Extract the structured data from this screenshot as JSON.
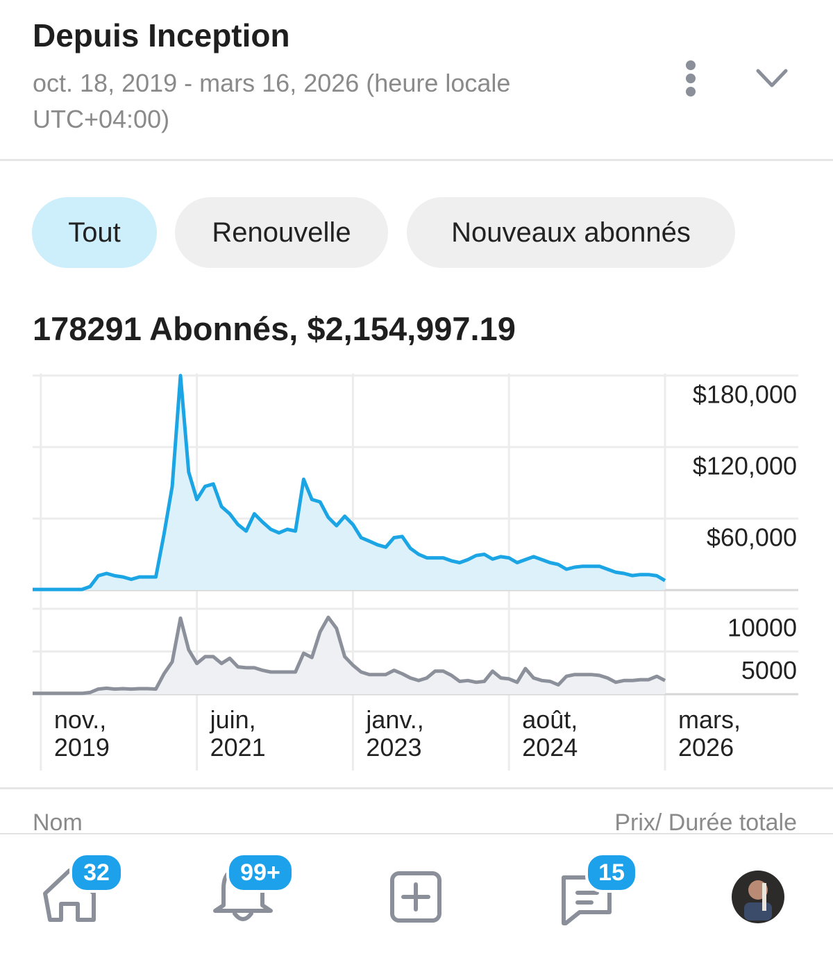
{
  "header": {
    "title": "Depuis Inception",
    "subtitle": "oct. 18, 2019 - mars 16, 2026 (heure locale UTC+04:00)"
  },
  "tabs": [
    "Tout",
    "Renouvelle",
    "Nouveaux abonnés"
  ],
  "summary": "178291 Abonnés, $2,154,997.19",
  "table_header": {
    "name": "Nom",
    "price": "Prix/ Durée totale"
  },
  "nav": {
    "badges": [
      "32",
      "99+",
      "15"
    ]
  },
  "chart_data": [
    {
      "type": "area",
      "x": [
        "2019-10",
        "2019-11",
        "2019-12",
        "2020-01",
        "2020-02",
        "2020-03",
        "2020-04",
        "2020-05",
        "2020-06",
        "2020-07",
        "2020-08",
        "2020-09",
        "2020-10",
        "2020-11",
        "2020-12",
        "2021-01",
        "2021-02",
        "2021-03",
        "2021-04",
        "2021-05",
        "2021-06",
        "2021-07",
        "2021-08",
        "2021-09",
        "2021-10",
        "2021-11",
        "2021-12",
        "2022-01",
        "2022-02",
        "2022-03",
        "2022-04",
        "2022-05",
        "2022-06",
        "2022-07",
        "2022-08",
        "2022-09",
        "2022-10",
        "2022-11",
        "2022-12",
        "2023-01",
        "2023-02",
        "2023-03",
        "2023-04",
        "2023-05",
        "2023-06",
        "2023-07",
        "2023-08",
        "2023-09",
        "2023-10",
        "2023-11",
        "2023-12",
        "2024-01",
        "2024-02",
        "2024-03",
        "2024-04",
        "2024-05",
        "2024-06",
        "2024-07",
        "2024-08",
        "2024-09",
        "2024-10",
        "2024-11",
        "2024-12",
        "2025-01",
        "2025-02",
        "2025-03",
        "2025-04",
        "2025-05",
        "2025-06",
        "2025-07",
        "2025-08",
        "2025-09",
        "2025-10",
        "2025-11",
        "2025-12",
        "2026-01",
        "2026-02",
        "2026-03"
      ],
      "values": [
        500,
        500,
        500,
        500,
        500,
        500,
        500,
        3000,
        12000,
        14000,
        12000,
        11000,
        9000,
        11000,
        11000,
        11000,
        47000,
        87000,
        180000,
        99000,
        76000,
        87000,
        89000,
        70000,
        64000,
        55000,
        49500,
        64000,
        57000,
        51000,
        48000,
        51000,
        49500,
        93000,
        76000,
        74000,
        61000,
        54000,
        62000,
        55000,
        44000,
        41000,
        38000,
        36000,
        44000,
        45000,
        35000,
        30000,
        27000,
        27000,
        27000,
        24500,
        23000,
        25600,
        29000,
        30000,
        26000,
        28000,
        27000,
        23000,
        25600,
        28000,
        25600,
        23000,
        21500,
        17500,
        19200,
        20000,
        20000,
        20000,
        17500,
        15000,
        14000,
        12200,
        13000,
        13000,
        12000,
        8000
      ],
      "color": "#1ba5e5",
      "fill_color": "#dcf1fa",
      "xlim": [
        "2019-10",
        "2026-03"
      ],
      "xticks": [
        {
          "value": "2019-11",
          "label": "nov.,\n2019"
        },
        {
          "value": "2021-06",
          "label": "juin,\n2021"
        },
        {
          "value": "2023-01",
          "label": "janv.,\n2023"
        },
        {
          "value": "2024-08",
          "label": "août,\n2024"
        },
        {
          "value": "2026-03",
          "label": "mars,\n2026"
        }
      ],
      "ylim": [
        0,
        180000
      ],
      "yticks": [
        {
          "value": 60000,
          "label": "$60,000"
        },
        {
          "value": 120000,
          "label": "$120,000"
        },
        {
          "value": 180000,
          "label": "$180,000"
        }
      ],
      "grid": true
    },
    {
      "type": "area",
      "x": [
        "2019-10",
        "2019-11",
        "2019-12",
        "2020-01",
        "2020-02",
        "2020-03",
        "2020-04",
        "2020-05",
        "2020-06",
        "2020-07",
        "2020-08",
        "2020-09",
        "2020-10",
        "2020-11",
        "2020-12",
        "2021-01",
        "2021-02",
        "2021-03",
        "2021-04",
        "2021-05",
        "2021-06",
        "2021-07",
        "2021-08",
        "2021-09",
        "2021-10",
        "2021-11",
        "2021-12",
        "2022-01",
        "2022-02",
        "2022-03",
        "2022-04",
        "2022-05",
        "2022-06",
        "2022-07",
        "2022-08",
        "2022-09",
        "2022-10",
        "2022-11",
        "2022-12",
        "2023-01",
        "2023-02",
        "2023-03",
        "2023-04",
        "2023-05",
        "2023-06",
        "2023-07",
        "2023-08",
        "2023-09",
        "2023-10",
        "2023-11",
        "2023-12",
        "2024-01",
        "2024-02",
        "2024-03",
        "2024-04",
        "2024-05",
        "2024-06",
        "2024-07",
        "2024-08",
        "2024-09",
        "2024-10",
        "2024-11",
        "2024-12",
        "2025-01",
        "2025-02",
        "2025-03",
        "2025-04",
        "2025-05",
        "2025-06",
        "2025-07",
        "2025-08",
        "2025-09",
        "2025-10",
        "2025-11",
        "2025-12",
        "2026-01",
        "2026-02",
        "2026-03"
      ],
      "values": [
        100,
        100,
        100,
        100,
        100,
        100,
        100,
        200,
        600,
        700,
        600,
        650,
        600,
        650,
        650,
        600,
        2400,
        3800,
        8900,
        5200,
        3600,
        4400,
        4400,
        3600,
        4200,
        3200,
        3100,
        3100,
        2800,
        2600,
        2600,
        2600,
        2600,
        4800,
        4300,
        7300,
        9000,
        7700,
        4400,
        3400,
        2600,
        2300,
        2300,
        2300,
        2800,
        2400,
        1900,
        1600,
        1900,
        2700,
        2700,
        2200,
        1500,
        1600,
        1400,
        1500,
        2700,
        1900,
        1800,
        1400,
        3000,
        1900,
        1600,
        1500,
        1100,
        2100,
        2300,
        2300,
        2300,
        2200,
        1900,
        1400,
        1600,
        1600,
        1700,
        1700,
        2100,
        1600
      ],
      "color": "#8b909a",
      "fill_color": "#eef0f3",
      "xlim": [
        "2019-10",
        "2026-03"
      ],
      "ylim": [
        0,
        10000
      ],
      "yticks": [
        5000,
        10000
      ],
      "grid": true
    }
  ]
}
